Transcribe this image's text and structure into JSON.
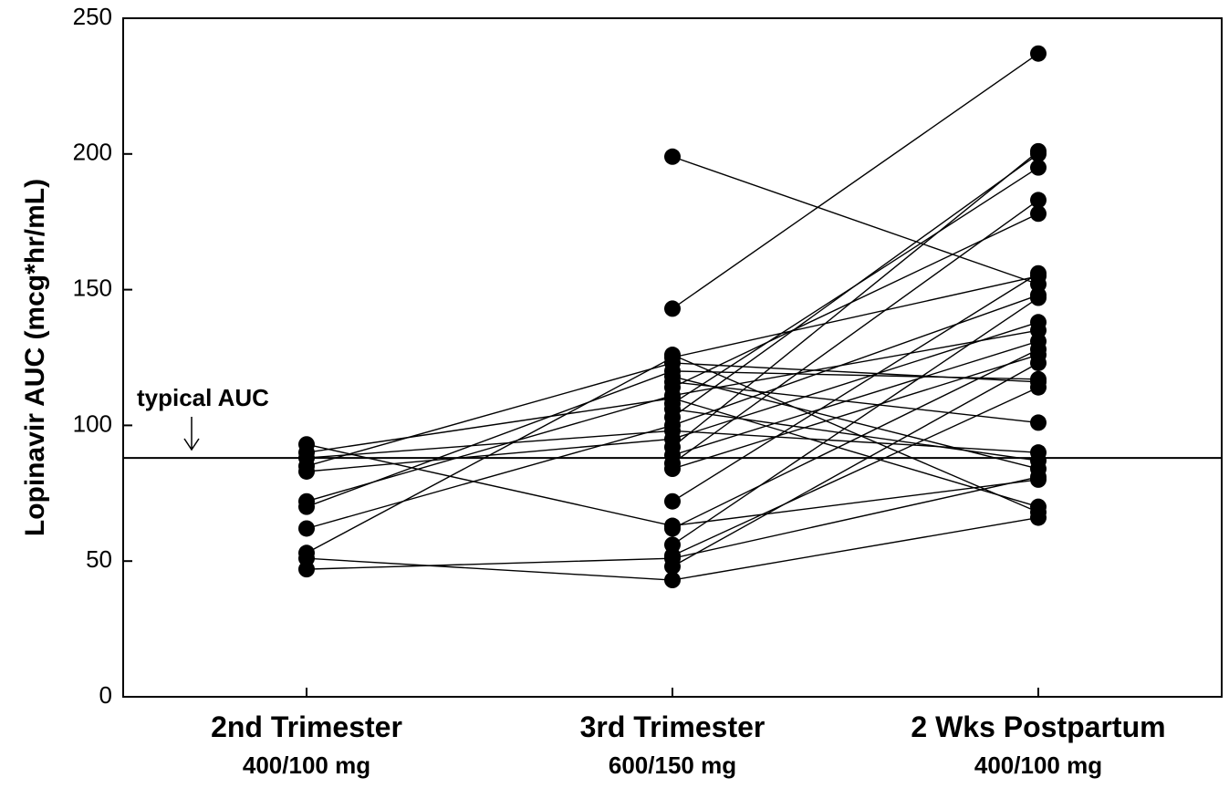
{
  "chart_data": {
    "type": "line",
    "xlabel": "",
    "ylabel": "Lopinavir AUC (mcg*hr/mL)",
    "ylim": [
      0,
      250
    ],
    "yticks": [
      0,
      50,
      100,
      150,
      200,
      250
    ],
    "grid": false,
    "categories": [
      {
        "label": "2nd Trimester",
        "dose": "400/100 mg"
      },
      {
        "label": "3rd Trimester",
        "dose": "600/150 mg"
      },
      {
        "label": "2 Wks Postpartum",
        "dose": "400/100 mg"
      }
    ],
    "reference_line": {
      "value": 88,
      "label": "typical AUC"
    },
    "series": [
      {
        "values": [
          93,
          63,
          80
        ]
      },
      {
        "values": [
          90,
          110,
          70
        ]
      },
      {
        "values": [
          88,
          98,
          90
        ]
      },
      {
        "values": [
          85,
          123,
          116
        ]
      },
      {
        "values": [
          83,
          95,
          138
        ]
      },
      {
        "values": [
          72,
          111,
          135
        ]
      },
      {
        "values": [
          70,
          120,
          117
        ]
      },
      {
        "values": [
          62,
          100,
          148
        ]
      },
      {
        "values": [
          53,
          125,
          155
        ]
      },
      {
        "values": [
          51,
          43,
          66
        ]
      },
      {
        "values": [
          47,
          51,
          81
        ]
      },
      {
        "values": [
          null,
          199,
          152
        ]
      },
      {
        "values": [
          null,
          143,
          237
        ]
      },
      {
        "values": [
          null,
          126,
          68
        ]
      },
      {
        "values": [
          null,
          118,
          84
        ]
      },
      {
        "values": [
          null,
          116,
          101
        ]
      },
      {
        "values": [
          null,
          114,
          178
        ]
      },
      {
        "values": [
          null,
          108,
          195
        ]
      },
      {
        "values": [
          null,
          106,
          87
        ]
      },
      {
        "values": [
          null,
          103,
          200
        ]
      },
      {
        "values": [
          null,
          92,
          201
        ]
      },
      {
        "values": [
          null,
          89,
          131
        ]
      },
      {
        "values": [
          null,
          86,
          183
        ]
      },
      {
        "values": [
          null,
          84,
          126
        ]
      },
      {
        "values": [
          null,
          72,
          156
        ]
      },
      {
        "values": [
          null,
          62,
          128
        ]
      },
      {
        "values": [
          null,
          56,
          147
        ]
      },
      {
        "values": [
          null,
          52,
          114
        ]
      },
      {
        "values": [
          null,
          48,
          123
        ]
      }
    ]
  }
}
